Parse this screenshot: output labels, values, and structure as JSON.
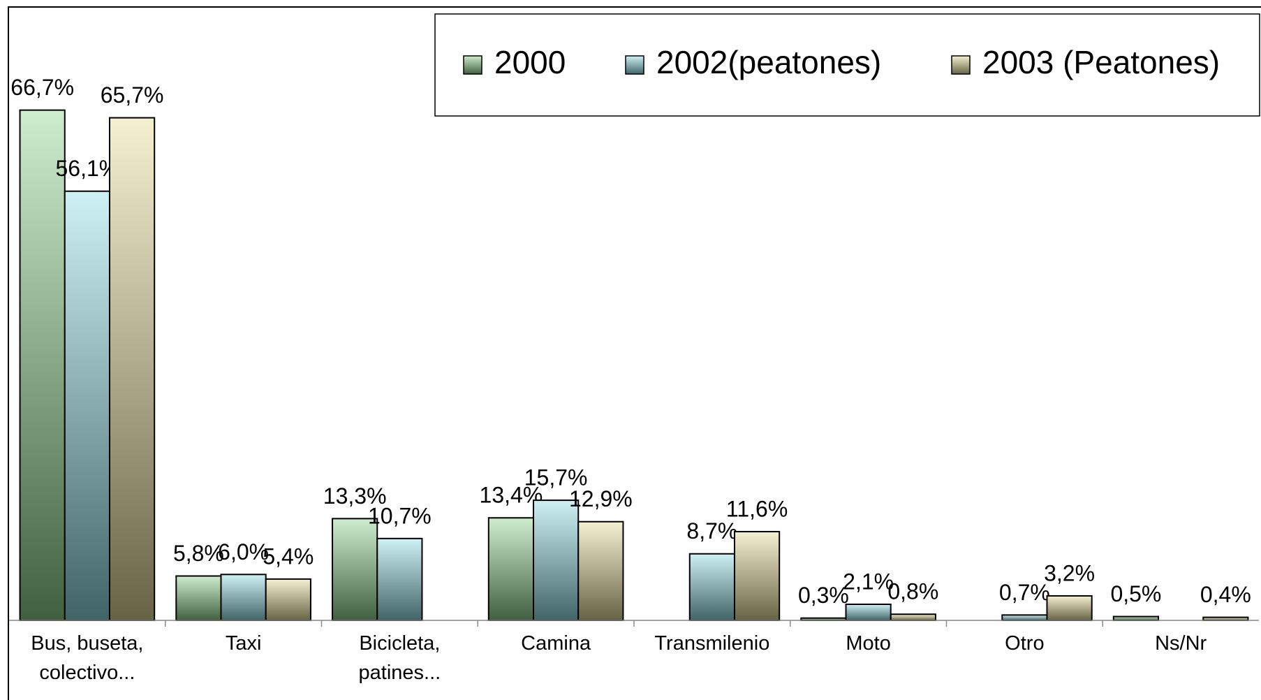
{
  "chart_data": {
    "type": "bar",
    "categories": [
      "Bus, buseta, colectivo...",
      "Taxi",
      "Bicicleta, patines...",
      "Camina",
      "Transmilenio",
      "Moto",
      "Otro",
      "Ns/Nr"
    ],
    "series": [
      {
        "name": "2000",
        "color": "#8fd68f",
        "values": [
          66.7,
          5.8,
          13.3,
          13.4,
          null,
          0.3,
          null,
          0.5
        ],
        "value_labels": [
          "66,7%",
          "5,8%",
          "13,3%",
          "13,4%",
          null,
          "0,3%",
          null,
          "0,5%"
        ]
      },
      {
        "name": "2002(peatones)",
        "color": "#8fdfe6",
        "values": [
          56.1,
          6.0,
          10.7,
          15.7,
          8.7,
          2.1,
          0.7,
          null
        ],
        "value_labels": [
          "56,1%",
          "6,0%",
          "10,7%",
          "15,7%",
          "8,7%",
          "2,1%",
          "0,7%",
          null
        ]
      },
      {
        "name": "2003 (Peatones)",
        "color": "#e6df99",
        "values": [
          65.7,
          5.4,
          null,
          12.9,
          11.6,
          0.8,
          3.2,
          0.4
        ],
        "value_labels": [
          "65,7%",
          "5,4%",
          null,
          "12,9%",
          "11,6%",
          "0,8%",
          "3,2%",
          "0,4%"
        ]
      }
    ],
    "ylim": [
      0,
      80
    ]
  }
}
